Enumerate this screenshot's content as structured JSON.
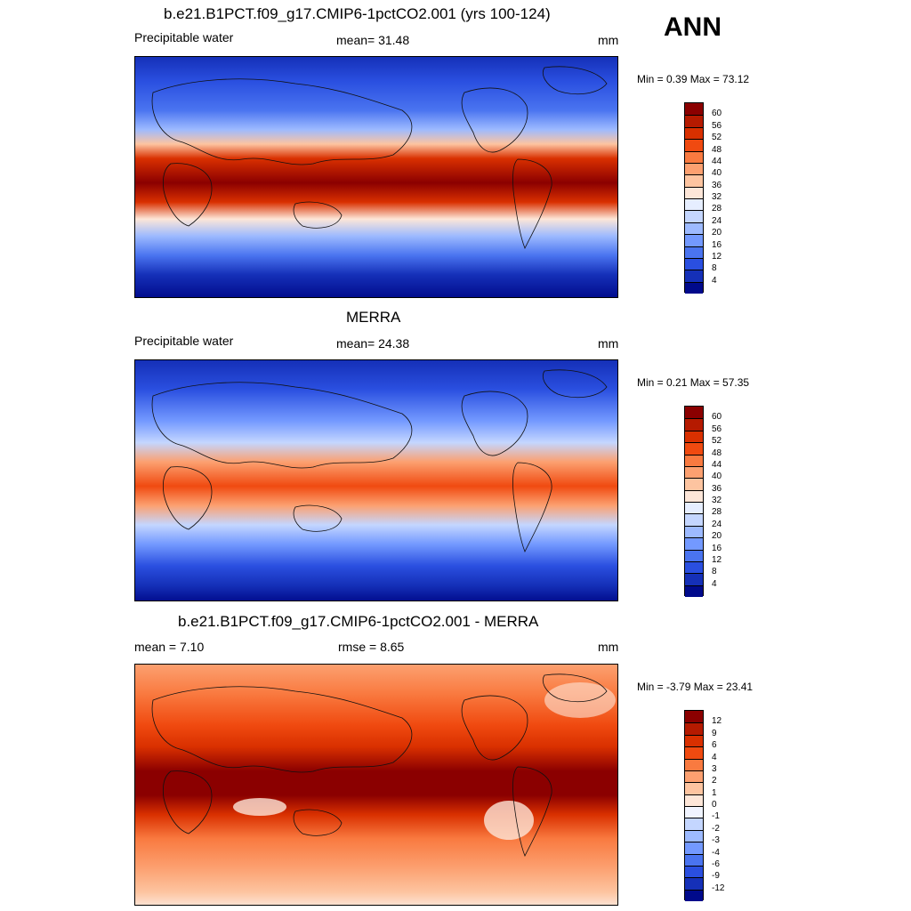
{
  "season": "ANN",
  "panels": [
    {
      "title": "b.e21.B1PCT.f09_g17.CMIP6-1pctCO2.001 (yrs 100-124)",
      "left_label": "Precipitable water",
      "center_label": "mean=  31.48",
      "unit": "mm",
      "minmax": "Min =   0.39 Max =  73.12",
      "kind": "field",
      "colorbar": {
        "labels": [
          "60",
          "56",
          "52",
          "48",
          "44",
          "40",
          "36",
          "32",
          "28",
          "24",
          "20",
          "16",
          "12",
          "8",
          "4"
        ],
        "colors": [
          "#8b0000",
          "#b51a00",
          "#d93000",
          "#f04a10",
          "#f97a40",
          "#fca070",
          "#fdc4a0",
          "#fde6d8",
          "#e6eeff",
          "#c4d6ff",
          "#9dbaff",
          "#7399ff",
          "#4a74f0",
          "#2a4fe0",
          "#1530b8",
          "#000a8b"
        ]
      }
    },
    {
      "title": "MERRA",
      "left_label": "Precipitable water",
      "center_label": "mean=  24.38",
      "unit": "mm",
      "minmax": "Min =   0.21 Max =  57.35",
      "kind": "field",
      "colorbar": {
        "labels": [
          "60",
          "56",
          "52",
          "48",
          "44",
          "40",
          "36",
          "32",
          "28",
          "24",
          "20",
          "16",
          "12",
          "8",
          "4"
        ],
        "colors": [
          "#8b0000",
          "#b51a00",
          "#d93000",
          "#f04a10",
          "#f97a40",
          "#fca070",
          "#fdc4a0",
          "#fde6d8",
          "#e6eeff",
          "#c4d6ff",
          "#9dbaff",
          "#7399ff",
          "#4a74f0",
          "#2a4fe0",
          "#1530b8",
          "#000a8b"
        ]
      }
    },
    {
      "title": "b.e21.B1PCT.f09_g17.CMIP6-1pctCO2.001 - MERRA",
      "left_label": "mean =   7.10",
      "center_label": "rmse =   8.65",
      "unit": "mm",
      "minmax": "Min =  -3.79 Max =  23.41",
      "kind": "diff",
      "colorbar": {
        "labels": [
          "12",
          "9",
          "6",
          "4",
          "3",
          "2",
          "1",
          "0",
          "-1",
          "-2",
          "-3",
          "-4",
          "-6",
          "-9",
          "-12"
        ],
        "colors": [
          "#8b0000",
          "#b51a00",
          "#d93000",
          "#f04a10",
          "#f97a40",
          "#fca070",
          "#fdc4a0",
          "#fde6d8",
          "#f0f4ff",
          "#c4d6ff",
          "#9dbaff",
          "#7399ff",
          "#4a74f0",
          "#2a4fe0",
          "#1530b8",
          "#000a8b"
        ]
      }
    }
  ]
}
